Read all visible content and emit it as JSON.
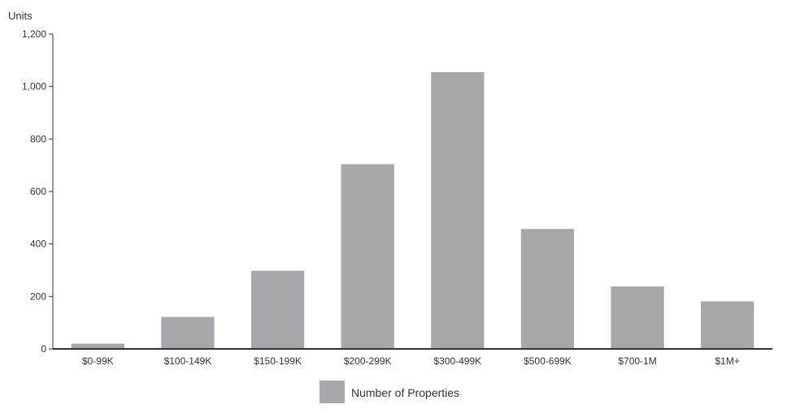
{
  "chart_data": {
    "type": "bar",
    "ylabel": "Units",
    "categories": [
      "$0-99K",
      "$100-149K",
      "$150-199K",
      "$200-299K",
      "$300-499K",
      "$500-699K",
      "$700-1M",
      "$1M+"
    ],
    "series": [
      {
        "name": "Number of Properties",
        "values": [
          20,
          122,
          298,
          704,
          1055,
          457,
          238,
          181
        ]
      }
    ],
    "yticks": [
      0,
      200,
      400,
      600,
      800,
      1000,
      1200
    ],
    "ytick_labels": [
      "0",
      "200",
      "400",
      "600",
      "800",
      "1,000",
      "1,200"
    ],
    "ylim": [
      0,
      1200
    ],
    "grid": false,
    "legend_position": "bottom-center",
    "colors": {
      "bar": "#a7a8ab",
      "axis": "#333333",
      "text": "#333333"
    }
  }
}
